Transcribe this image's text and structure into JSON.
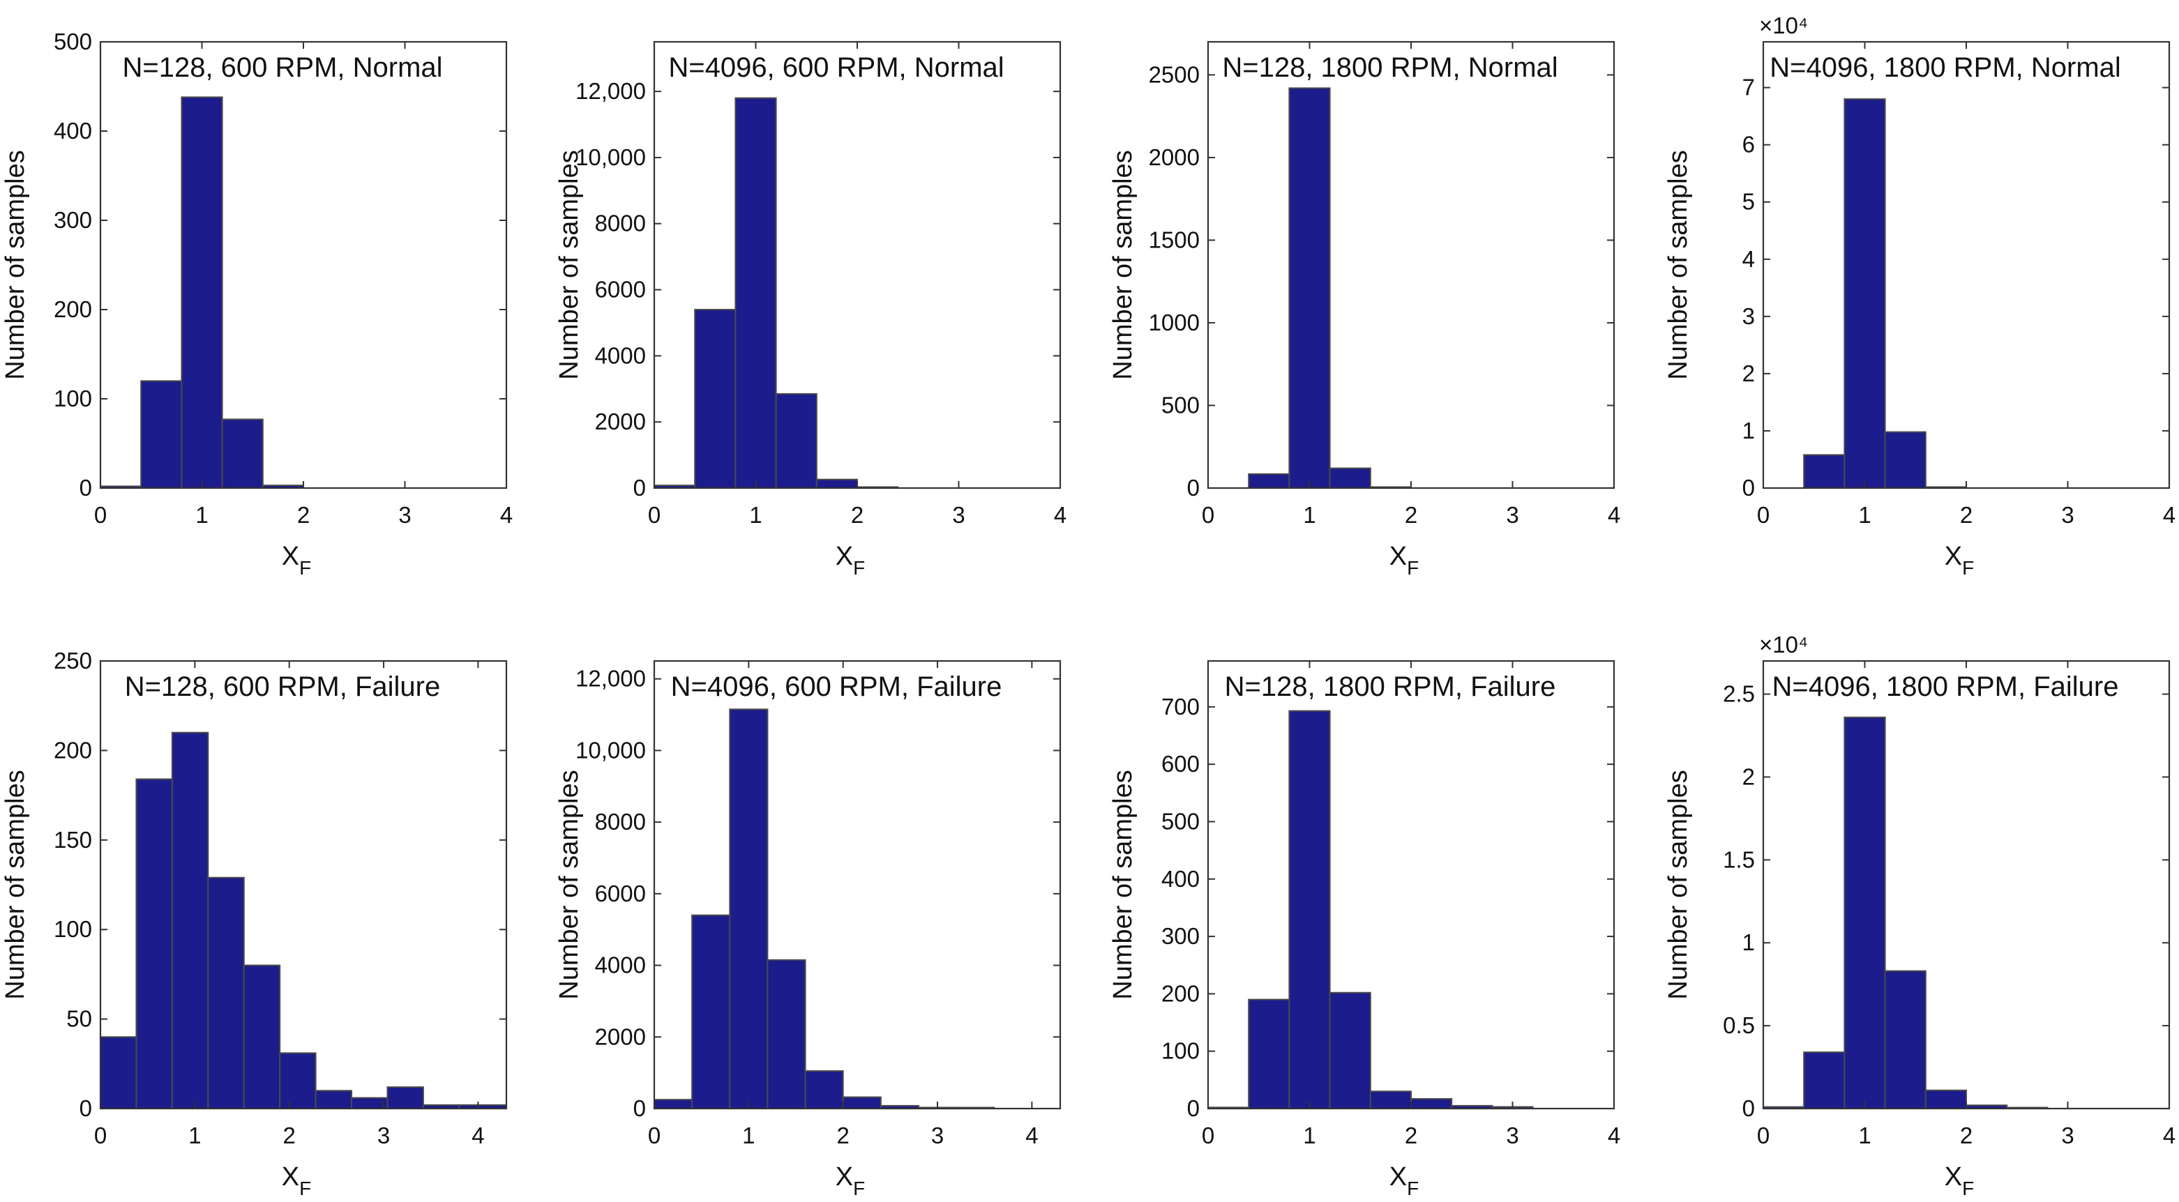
{
  "chart_data": [
    {
      "type": "bar",
      "title": "N=128, 600 RPM, Normal",
      "xlabel": "X",
      "xlabel_sub": "F",
      "ylabel": "Number of samples",
      "xlim": [
        0,
        4
      ],
      "ylim": [
        0,
        500
      ],
      "xticks": [
        "0",
        "1",
        "2",
        "3",
        "4"
      ],
      "yticks": [
        0,
        100,
        200,
        300,
        400,
        500
      ],
      "ytick_labels": [
        "0",
        "100",
        "200",
        "300",
        "400",
        "500"
      ],
      "exponent_label": "",
      "bin_edges": [
        0,
        0.4,
        0.8,
        1.2,
        1.6,
        2.0,
        2.4,
        2.8,
        3.2,
        3.6,
        4.0
      ],
      "values": [
        2,
        120,
        438,
        77,
        3,
        0,
        0,
        0,
        0,
        0
      ]
    },
    {
      "type": "bar",
      "title": "N=4096, 600 RPM, Normal",
      "xlabel": "X",
      "xlabel_sub": "F",
      "ylabel": "Number of samples",
      "xlim": [
        0,
        4
      ],
      "ylim": [
        0,
        13500
      ],
      "xticks": [
        "0",
        "1",
        "2",
        "3",
        "4"
      ],
      "yticks": [
        0,
        2000,
        4000,
        6000,
        8000,
        10000,
        12000
      ],
      "ytick_labels": [
        "0",
        "2000",
        "4000",
        "6000",
        "8000",
        "10,000",
        "12,000"
      ],
      "exponent_label": "",
      "bin_edges": [
        0,
        0.4,
        0.8,
        1.2,
        1.6,
        2.0,
        2.4,
        2.8,
        3.2,
        3.6,
        4.0
      ],
      "values": [
        80,
        5400,
        11800,
        2850,
        260,
        30,
        0,
        0,
        0,
        0
      ]
    },
    {
      "type": "bar",
      "title": "N=128, 1800 RPM, Normal",
      "xlabel": "X",
      "xlabel_sub": "F",
      "ylabel": "Number of samples",
      "xlim": [
        0,
        4
      ],
      "ylim": [
        0,
        2700
      ],
      "xticks": [
        "0",
        "1",
        "2",
        "3",
        "4"
      ],
      "yticks": [
        0,
        500,
        1000,
        1500,
        2000,
        2500
      ],
      "ytick_labels": [
        "0",
        "500",
        "1000",
        "1500",
        "2000",
        "2500"
      ],
      "exponent_label": "",
      "bin_edges": [
        0,
        0.4,
        0.8,
        1.2,
        1.6,
        2.0,
        2.4,
        2.8,
        3.2,
        3.6,
        4.0
      ],
      "values": [
        0,
        85,
        2420,
        120,
        3,
        0,
        0,
        0,
        0,
        0
      ]
    },
    {
      "type": "bar",
      "title": "N=4096, 1800 RPM, Normal",
      "xlabel": "X",
      "xlabel_sub": "F",
      "ylabel": "Number of samples",
      "xlim": [
        0,
        4
      ],
      "ylim": [
        0,
        7.8
      ],
      "xticks": [
        "0",
        "1",
        "2",
        "3",
        "4"
      ],
      "yticks": [
        0,
        1,
        2,
        3,
        4,
        5,
        6,
        7
      ],
      "ytick_labels": [
        "0",
        "1",
        "2",
        "3",
        "4",
        "5",
        "6",
        "7"
      ],
      "exponent_label": "×10⁴",
      "bin_edges": [
        0,
        0.4,
        0.8,
        1.2,
        1.6,
        2.0,
        2.4,
        2.8,
        3.2,
        3.6,
        4.0
      ],
      "values": [
        0,
        0.58,
        6.8,
        0.98,
        0.01,
        0,
        0,
        0,
        0,
        0
      ]
    },
    {
      "type": "bar",
      "title": "N=128, 600 RPM, Failure",
      "xlabel": "X",
      "xlabel_sub": "F",
      "ylabel": "Number of samples",
      "xlim": [
        0,
        4.3
      ],
      "ylim": [
        0,
        250
      ],
      "xticks": [
        "0",
        "1",
        "2",
        "3",
        "4"
      ],
      "yticks": [
        0,
        50,
        100,
        150,
        200,
        250
      ],
      "ytick_labels": [
        "0",
        "50",
        "100",
        "150",
        "200",
        "250"
      ],
      "exponent_label": "",
      "bin_edges": [
        0,
        0.38,
        0.76,
        1.14,
        1.52,
        1.9,
        2.28,
        2.66,
        3.04,
        3.42,
        3.8,
        4.3
      ],
      "values": [
        40,
        184,
        210,
        129,
        80,
        31,
        10,
        6,
        12,
        2,
        2
      ]
    },
    {
      "type": "bar",
      "title": "N=4096, 600 RPM, Failure",
      "xlabel": "X",
      "xlabel_sub": "F",
      "ylabel": "Number of samples",
      "xlim": [
        0,
        4.3
      ],
      "ylim": [
        0,
        12500
      ],
      "xticks": [
        "0",
        "1",
        "2",
        "3",
        "4"
      ],
      "yticks": [
        0,
        2000,
        4000,
        6000,
        8000,
        10000,
        12000
      ],
      "ytick_labels": [
        "0",
        "2000",
        "4000",
        "6000",
        "8000",
        "10,000",
        "12,000"
      ],
      "exponent_label": "",
      "bin_edges": [
        0,
        0.4,
        0.8,
        1.2,
        1.6,
        2.0,
        2.4,
        2.8,
        3.2,
        3.6,
        4.0
      ],
      "values": [
        250,
        5400,
        11150,
        4150,
        1050,
        320,
        80,
        30,
        10,
        0
      ]
    },
    {
      "type": "bar",
      "title": "N=128, 1800 RPM, Failure",
      "xlabel": "X",
      "xlabel_sub": "F",
      "ylabel": "Number of samples",
      "xlim": [
        0,
        4
      ],
      "ylim": [
        0,
        780
      ],
      "xticks": [
        "0",
        "1",
        "2",
        "3",
        "4"
      ],
      "yticks": [
        0,
        100,
        200,
        300,
        400,
        500,
        600,
        700
      ],
      "ytick_labels": [
        "0",
        "100",
        "200",
        "300",
        "400",
        "500",
        "600",
        "700"
      ],
      "exponent_label": "",
      "bin_edges": [
        0,
        0.4,
        0.8,
        1.2,
        1.6,
        2.0,
        2.4,
        2.8,
        3.2,
        3.6,
        4.0
      ],
      "values": [
        2,
        190,
        693,
        202,
        30,
        17,
        5,
        3,
        0,
        0
      ]
    },
    {
      "type": "bar",
      "title": "N=4096, 1800 RPM, Failure",
      "xlabel": "X",
      "xlabel_sub": "F",
      "ylabel": "Number of samples",
      "xlim": [
        0,
        4
      ],
      "ylim": [
        0,
        2.7
      ],
      "xticks": [
        "0",
        "1",
        "2",
        "3",
        "4"
      ],
      "yticks": [
        0,
        0.5,
        1,
        1.5,
        2,
        2.5
      ],
      "ytick_labels": [
        "0",
        "0.5",
        "1",
        "1.5",
        "2",
        "2.5"
      ],
      "exponent_label": "×10⁴",
      "bin_edges": [
        0,
        0.4,
        0.8,
        1.2,
        1.6,
        2.0,
        2.4,
        2.8,
        3.2,
        3.6,
        4.0
      ],
      "values": [
        0.01,
        0.34,
        2.36,
        0.83,
        0.11,
        0.02,
        0.005,
        0,
        0,
        0
      ]
    }
  ]
}
